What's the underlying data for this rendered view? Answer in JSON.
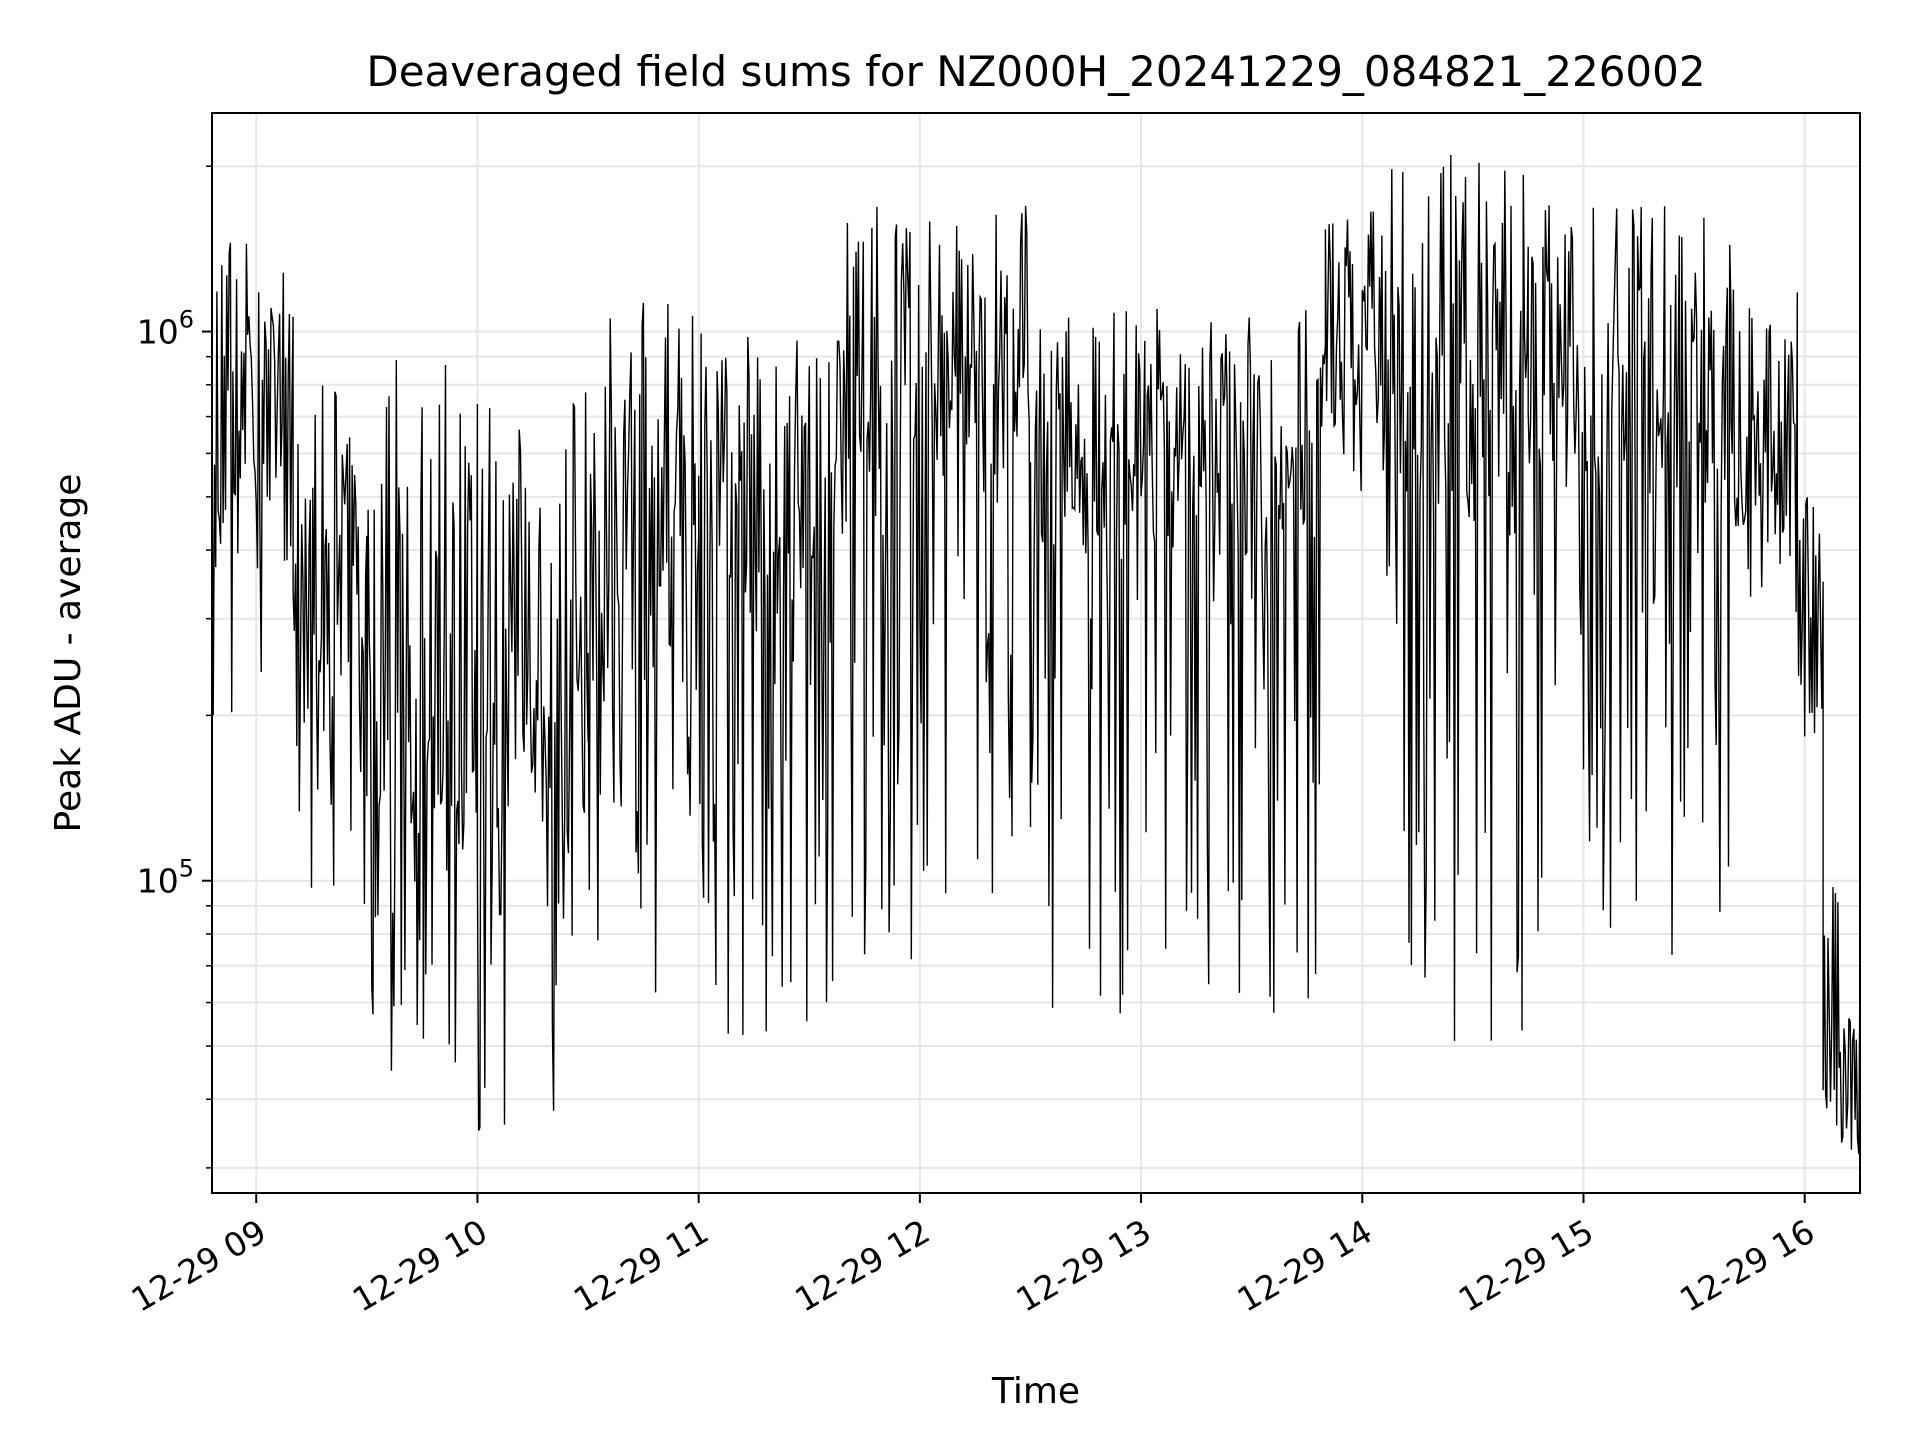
{
  "chart_data": {
    "type": "line",
    "title": "Deaveraged field sums for NZ000H_20241229_084821_226002",
    "xlabel": "Time",
    "ylabel": "Peak ADU - average",
    "x_ticks": [
      "12-29 09",
      "12-29 10",
      "12-29 11",
      "12-29 12",
      "12-29 13",
      "12-29 14",
      "12-29 15",
      "12-29 16"
    ],
    "xlim": [
      "2024-12-29 08:48",
      "2024-12-29 16:15"
    ],
    "y_scale": "log",
    "ylim": [
      27000,
      2500000
    ],
    "y_major_ticks": [
      {
        "value": 100000,
        "base": "10",
        "exp": "5"
      },
      {
        "value": 1000000,
        "base": "10",
        "exp": "6"
      }
    ],
    "grid": true,
    "series_color": "#000000",
    "grid_color": "#e6e6e6",
    "sample_minutes": 1,
    "series": [
      {
        "segments": [
          {
            "start": "2024-12-29 08:48",
            "end": "2024-12-29 09:10",
            "base": 600000,
            "low": 200000,
            "high": 1500000,
            "dip_prob": 0.15
          },
          {
            "start": "2024-12-29 09:10",
            "end": "2024-12-29 09:30",
            "base": 300000,
            "low": 90000,
            "high": 800000,
            "dip_prob": 0.25
          },
          {
            "start": "2024-12-29 09:30",
            "end": "2024-12-29 10:00",
            "base": 200000,
            "low": 45000,
            "high": 900000,
            "dip_prob": 0.35
          },
          {
            "start": "2024-12-29 10:00",
            "end": "2024-12-29 10:30",
            "base": 200000,
            "low": 35000,
            "high": 800000,
            "dip_prob": 0.35
          },
          {
            "start": "2024-12-29 10:30",
            "end": "2024-12-29 11:00",
            "base": 350000,
            "low": 60000,
            "high": 1200000,
            "dip_prob": 0.3
          },
          {
            "start": "2024-12-29 11:00",
            "end": "2024-12-29 11:40",
            "base": 500000,
            "low": 50000,
            "high": 1000000,
            "dip_prob": 0.3
          },
          {
            "start": "2024-12-29 11:40",
            "end": "2024-12-29 12:30",
            "base": 900000,
            "low": 70000,
            "high": 1700000,
            "dip_prob": 0.28
          },
          {
            "start": "2024-12-29 12:30",
            "end": "2024-12-29 13:50",
            "base": 650000,
            "low": 55000,
            "high": 1100000,
            "dip_prob": 0.3
          },
          {
            "start": "2024-12-29 13:50",
            "end": "2024-12-29 14:05",
            "base": 1100000,
            "low": 400000,
            "high": 1700000,
            "dip_prob": 0.15
          },
          {
            "start": "2024-12-29 14:05",
            "end": "2024-12-29 14:45",
            "base": 700000,
            "low": 50000,
            "high": 2100000,
            "dip_prob": 0.3
          },
          {
            "start": "2024-12-29 14:45",
            "end": "2024-12-29 15:40",
            "base": 800000,
            "low": 70000,
            "high": 1700000,
            "dip_prob": 0.28
          },
          {
            "start": "2024-12-29 15:40",
            "end": "2024-12-29 15:58",
            "base": 700000,
            "low": 300000,
            "high": 1200000,
            "dip_prob": 0.15
          },
          {
            "start": "2024-12-29 15:58",
            "end": "2024-12-29 16:05",
            "base": 300000,
            "low": 200000,
            "high": 500000,
            "dip_prob": 0.1
          },
          {
            "start": "2024-12-29 16:05",
            "end": "2024-12-29 16:15",
            "base": 55000,
            "low": 30000,
            "high": 100000,
            "dip_prob": 0.3
          }
        ]
      }
    ]
  }
}
